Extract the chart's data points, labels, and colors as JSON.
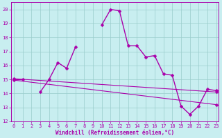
{
  "hours": [
    0,
    1,
    2,
    3,
    4,
    5,
    6,
    7,
    8,
    9,
    10,
    11,
    12,
    13,
    14,
    15,
    16,
    17,
    18,
    19,
    20,
    21,
    22,
    23
  ],
  "windchill_main": [
    15.0,
    15.0,
    null,
    14.1,
    15.0,
    16.2,
    15.8,
    17.3,
    null,
    null,
    18.9,
    20.0,
    19.9,
    17.4,
    17.4,
    16.6,
    16.7,
    15.4,
    15.3,
    13.1,
    12.5,
    13.1,
    14.3,
    14.2
  ],
  "trend1_x": [
    0,
    23
  ],
  "trend1_y": [
    15.05,
    14.1
  ],
  "trend2_x": [
    0,
    23
  ],
  "trend2_y": [
    14.95,
    13.2
  ],
  "bg_color": "#c8eef0",
  "line_color": "#aa00aa",
  "grid_color": "#99cccc",
  "ylabel_values": [
    12,
    13,
    14,
    15,
    16,
    17,
    18,
    19,
    20
  ],
  "ylim": [
    12,
    20.5
  ],
  "xlim": [
    -0.3,
    23.3
  ],
  "xlabel": "Windchill (Refroidissement éolien,°C)",
  "marker": "D",
  "marker_size": 2.5,
  "linewidth": 1.0,
  "title_fontsize": 7,
  "tick_fontsize": 5,
  "xlabel_fontsize": 5.5
}
